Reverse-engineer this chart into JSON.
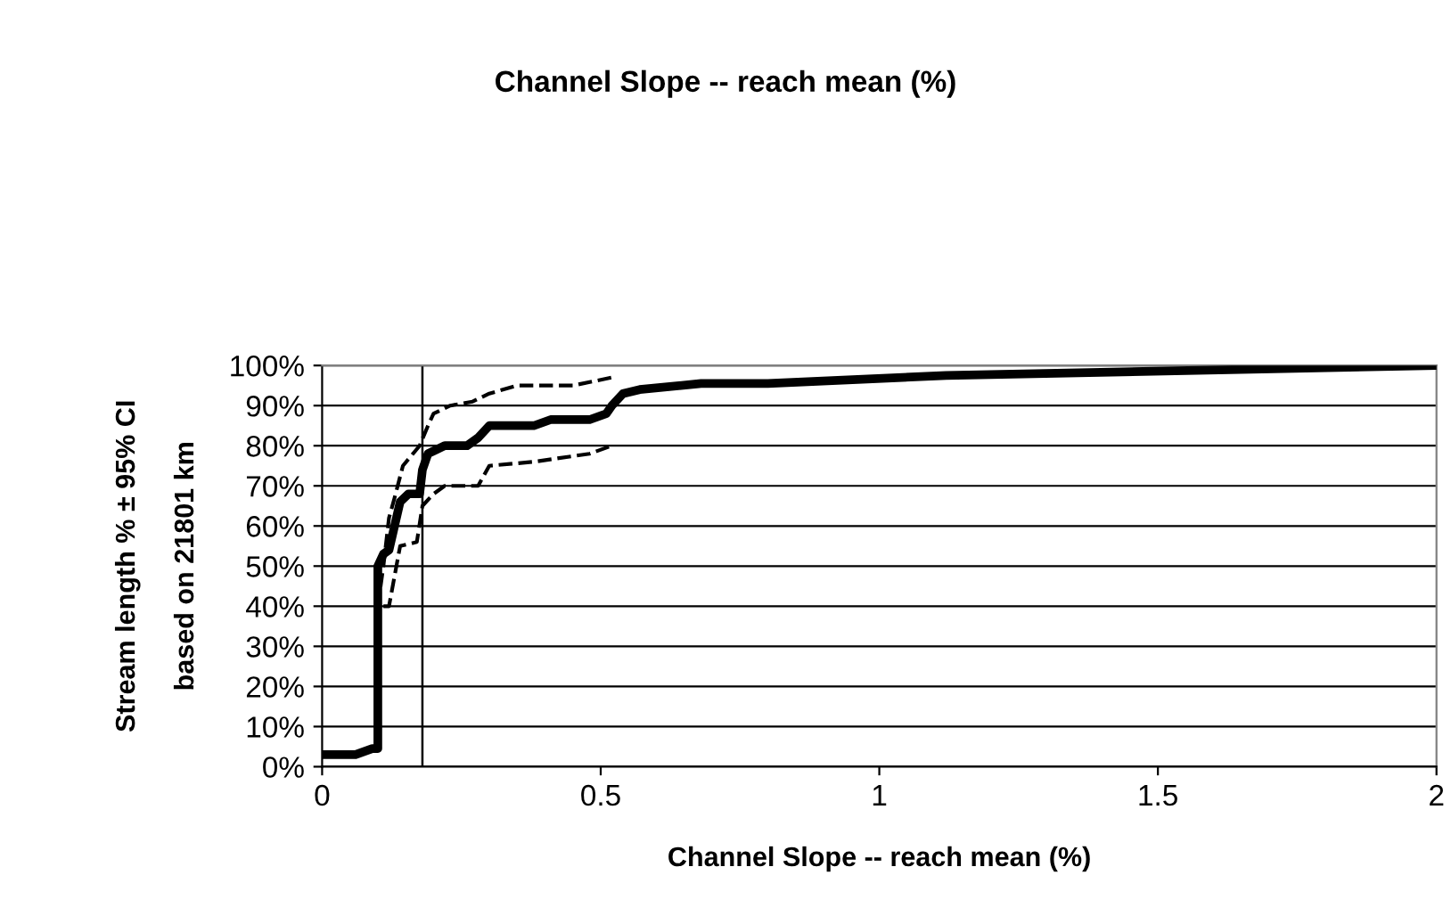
{
  "chart_data": {
    "type": "line",
    "title": "Channel Slope -- reach mean (%)",
    "xlabel": "Channel Slope -- reach mean (%)",
    "ylabel": "Stream length % ± 95% CI\n\nbased on 21801 km",
    "xlim": [
      0,
      2
    ],
    "xticks": [
      0,
      0.5,
      1,
      1.5,
      2
    ],
    "ylim": [
      0,
      100
    ],
    "yticks": [
      {
        "value": 0,
        "label": "0%"
      },
      {
        "value": 10,
        "label": "10%"
      },
      {
        "value": 20,
        "label": "20%"
      },
      {
        "value": 30,
        "label": "30%"
      },
      {
        "value": 40,
        "label": "40%"
      },
      {
        "value": 50,
        "label": "50%"
      },
      {
        "value": 60,
        "label": "60%"
      },
      {
        "value": 70,
        "label": "70%"
      },
      {
        "value": 80,
        "label": "80%"
      },
      {
        "value": 90,
        "label": "90%"
      },
      {
        "value": 100,
        "label": "100%"
      }
    ],
    "grid": "y",
    "legend": false,
    "marker": "none",
    "ref_lines": [
      {
        "axis": "x",
        "value": 0.18,
        "color": "#000000"
      }
    ],
    "series": [
      {
        "color": "#000000",
        "line_style": "solid",
        "x": [
          0,
          0.06,
          0.09,
          0.1,
          0.1,
          0.11,
          0.12,
          0.14,
          0.155,
          0.175,
          0.18,
          0.19,
          0.22,
          0.26,
          0.28,
          0.3,
          0.38,
          0.41,
          0.48,
          0.51,
          0.52,
          0.54,
          0.57,
          0.68,
          0.8,
          1.12,
          2
        ],
        "values": [
          3,
          3,
          4.5,
          4.5,
          50,
          53,
          54,
          66,
          68,
          68,
          74,
          78,
          80,
          80,
          82,
          85,
          85,
          86.5,
          86.5,
          88,
          90,
          93,
          94,
          95.5,
          95.5,
          97.5,
          100
        ]
      },
      {
        "color": "#000000",
        "line_style": "dashed",
        "x": [
          0.1,
          0.11,
          0.12,
          0.13,
          0.145,
          0.175,
          0.19,
          0.2,
          0.23,
          0.27,
          0.3,
          0.35,
          0.45,
          0.52
        ],
        "values": [
          40,
          50,
          62,
          67,
          75,
          80,
          85,
          88,
          90,
          91,
          93,
          95,
          95,
          97
        ]
      },
      {
        "color": "#000000",
        "line_style": "dashed",
        "x": [
          0.11,
          0.12,
          0.14,
          0.17,
          0.18,
          0.2,
          0.22,
          0.28,
          0.3,
          0.38,
          0.48,
          0.52
        ],
        "values": [
          40,
          40,
          55,
          56,
          65,
          68,
          70,
          70,
          75,
          76,
          78,
          80
        ]
      }
    ]
  }
}
